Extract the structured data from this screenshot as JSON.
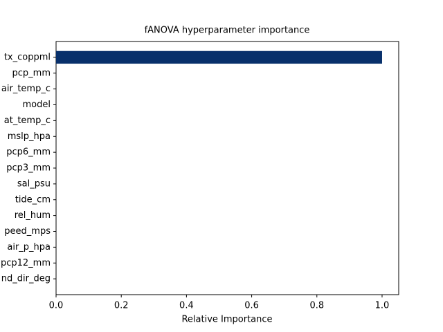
{
  "chart_data": {
    "type": "barh",
    "title": "fANOVA hyperparameter importance",
    "x_label": "Relative Importance",
    "categories": [
      "tx_coppml",
      "pcp_mm",
      "air_temp_c",
      "model",
      "at_temp_c",
      "mslp_hpa",
      "pcp6_mm",
      "pcp3_mm",
      "sal_psu",
      "tide_cm",
      "rel_hum",
      "peed_mps",
      "air_p_hpa",
      "pcp12_mm",
      "nd_dir_deg"
    ],
    "values": [
      1.0,
      0,
      0,
      0,
      0,
      0,
      0,
      0,
      0,
      0,
      0,
      0,
      0,
      0,
      0
    ],
    "color": "#08306b",
    "xlim": [
      0,
      1.051
    ],
    "xticks": [
      {
        "value": 0,
        "label": "0.0"
      },
      {
        "value": 0.2,
        "label": "0.2"
      },
      {
        "value": 0.4,
        "label": "0.4"
      },
      {
        "value": 0.6,
        "label": "0.6"
      },
      {
        "value": 0.8,
        "label": "0.8"
      },
      {
        "value": 1.0,
        "label": "1.0"
      }
    ]
  }
}
